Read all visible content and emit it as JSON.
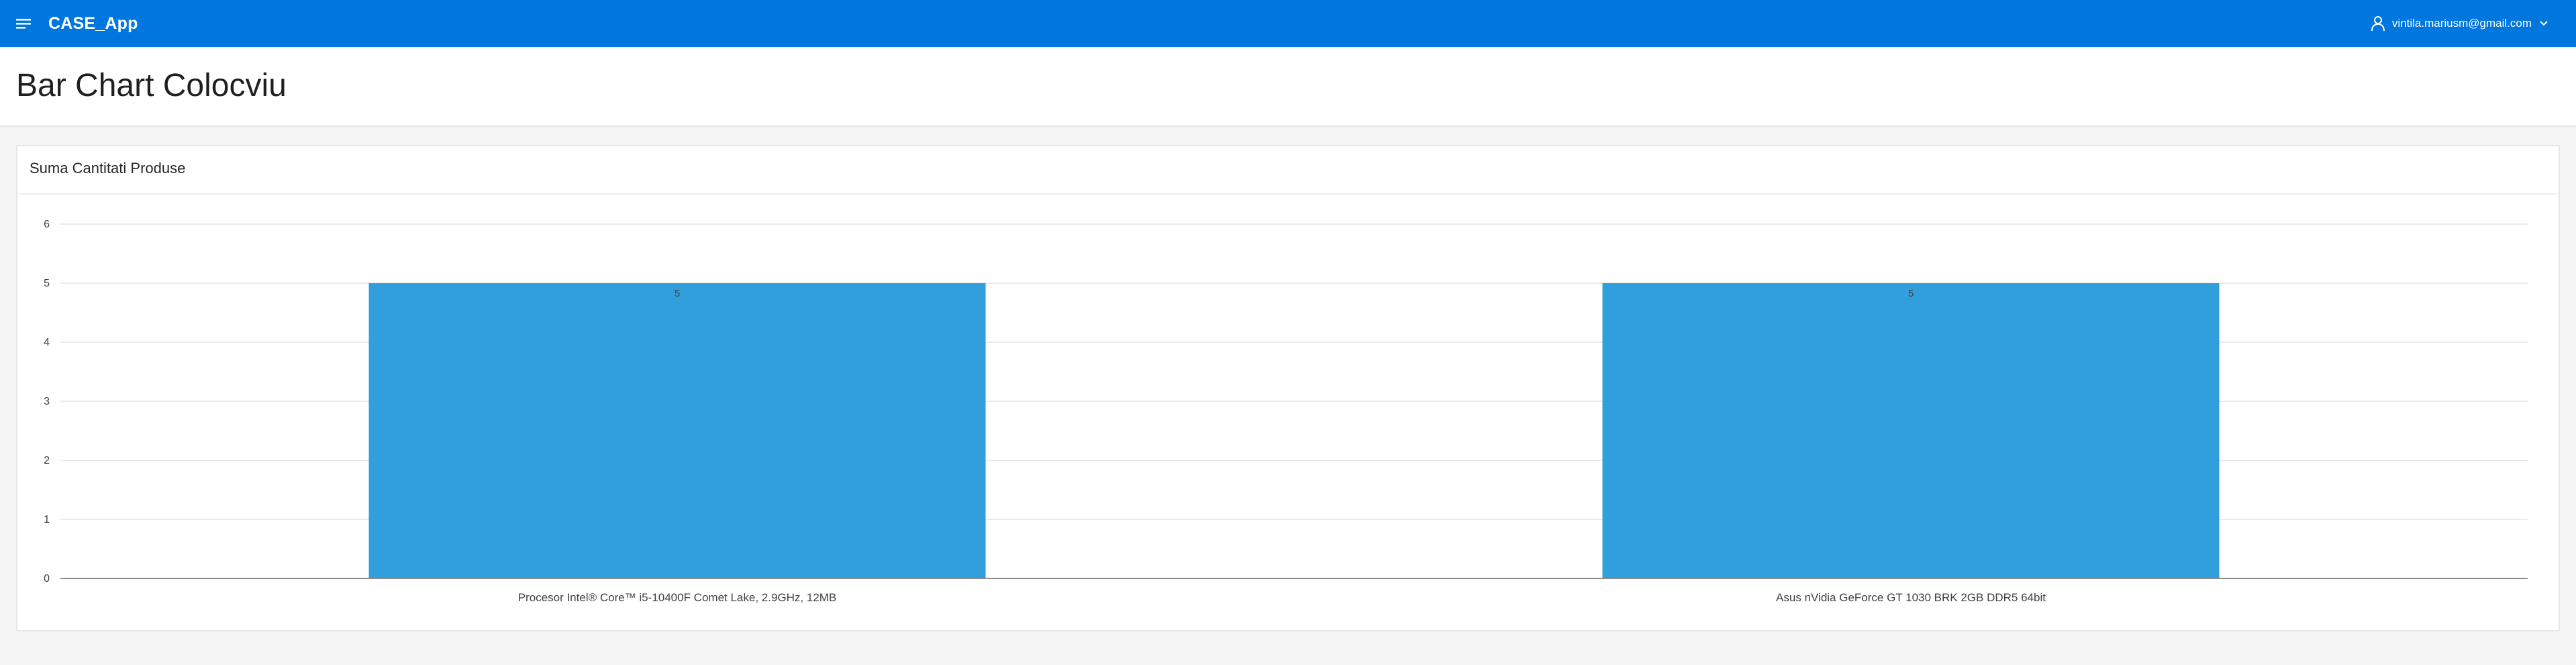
{
  "app": {
    "title": "CASE_App",
    "icons": {
      "menu": "hamburger-menu-icon",
      "user": "user-icon",
      "dropdown": "chevron-down-icon"
    }
  },
  "user": {
    "email": "vintila.mariusm@gmail.com"
  },
  "page": {
    "title": "Bar Chart Colocviu"
  },
  "region": {
    "title": "Suma Cantitati Produse"
  },
  "colors": {
    "header": "#0076df",
    "bar": "#309fdb"
  },
  "chart_data": {
    "type": "bar",
    "title": "",
    "xlabel": "",
    "ylabel": "",
    "categories": [
      "Procesor Intel® Core™ i5-10400F Comet Lake, 2.9GHz, 12MB",
      "Asus nVidia GeForce GT 1030 BRK 2GB DDR5 64bit"
    ],
    "values": [
      5,
      5
    ],
    "data_labels": [
      "5",
      "5"
    ],
    "ylim": [
      0,
      6
    ],
    "yticks": [
      "0",
      "1",
      "2",
      "3",
      "4",
      "5",
      "6"
    ],
    "grid": true,
    "legend": "none"
  }
}
